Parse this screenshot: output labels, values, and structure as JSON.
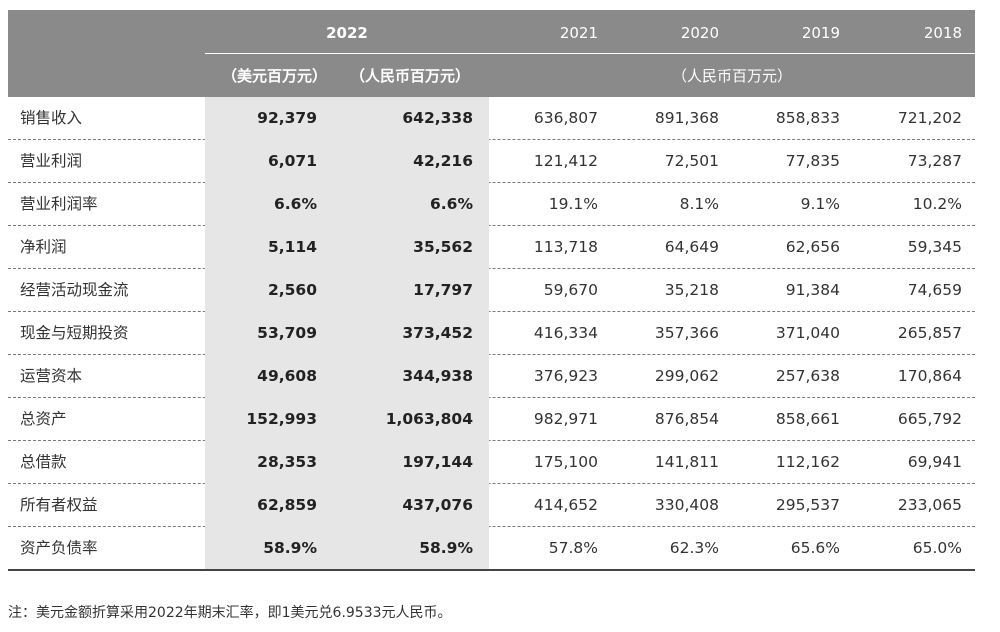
{
  "header": {
    "year_2022": "2022",
    "usd_unit": "（美元百万元）",
    "rmb_unit": "（人民币百万元）",
    "years": [
      "2021",
      "2020",
      "2019",
      "2018"
    ],
    "prior_unit": "（人民币百万元）"
  },
  "rows": [
    {
      "label": "销售收入",
      "usd": "92,379",
      "rmb": "642,338",
      "y2021": "636,807",
      "y2020": "891,368",
      "y2019": "858,833",
      "y2018": "721,202"
    },
    {
      "label": "营业利润",
      "usd": "6,071",
      "rmb": "42,216",
      "y2021": "121,412",
      "y2020": "72,501",
      "y2019": "77,835",
      "y2018": "73,287"
    },
    {
      "label": "营业利润率",
      "usd": "6.6%",
      "rmb": "6.6%",
      "y2021": "19.1%",
      "y2020": "8.1%",
      "y2019": "9.1%",
      "y2018": "10.2%"
    },
    {
      "label": "净利润",
      "usd": "5,114",
      "rmb": "35,562",
      "y2021": "113,718",
      "y2020": "64,649",
      "y2019": "62,656",
      "y2018": "59,345"
    },
    {
      "label": "经营活动现金流",
      "usd": "2,560",
      "rmb": "17,797",
      "y2021": "59,670",
      "y2020": "35,218",
      "y2019": "91,384",
      "y2018": "74,659"
    },
    {
      "label": "现金与短期投资",
      "usd": "53,709",
      "rmb": "373,452",
      "y2021": "416,334",
      "y2020": "357,366",
      "y2019": "371,040",
      "y2018": "265,857"
    },
    {
      "label": "运营资本",
      "usd": "49,608",
      "rmb": "344,938",
      "y2021": "376,923",
      "y2020": "299,062",
      "y2019": "257,638",
      "y2018": "170,864"
    },
    {
      "label": "总资产",
      "usd": "152,993",
      "rmb": "1,063,804",
      "y2021": "982,971",
      "y2020": "876,854",
      "y2019": "858,661",
      "y2018": "665,792"
    },
    {
      "label": "总借款",
      "usd": "28,353",
      "rmb": "197,144",
      "y2021": "175,100",
      "y2020": "141,811",
      "y2019": "112,162",
      "y2018": "69,941"
    },
    {
      "label": "所有者权益",
      "usd": "62,859",
      "rmb": "437,076",
      "y2021": "414,652",
      "y2020": "330,408",
      "y2019": "295,537",
      "y2018": "233,065"
    },
    {
      "label": "资产负债率",
      "usd": "58.9%",
      "rmb": "58.9%",
      "y2021": "57.8%",
      "y2020": "62.3%",
      "y2019": "65.6%",
      "y2018": "65.0%"
    }
  ],
  "note": "注：美元金额折算采用2022年期末汇率，即1美元兑6.9533元人民币。"
}
